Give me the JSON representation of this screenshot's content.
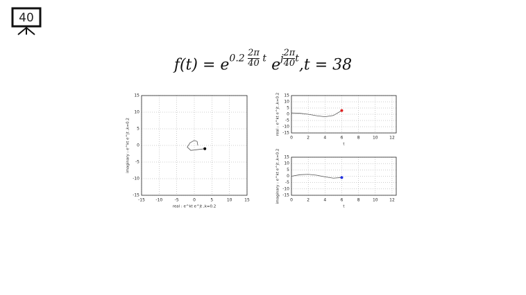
{
  "slide_number": "40",
  "formula": {
    "lhs": "f(t) = e",
    "exp1_coef": "0.2",
    "exp1_num": "2π",
    "exp1_den": "40",
    "exp1_var": "t",
    "base2": "e",
    "exp2_j": "j",
    "exp2_num": "2π",
    "exp2_den": "40",
    "exp2_var": "t",
    "tail": ",t = 38"
  },
  "chart_data": [
    {
      "type": "line",
      "xlabel": "real : e^kt e^jt ,k=0.2",
      "ylabel": "imaginary : e^kt e^jt ,k=0.2",
      "x": [
        1,
        0.8,
        0,
        -1.2,
        -2,
        -1,
        3
      ],
      "values": [
        0,
        1.2,
        1.5,
        0.8,
        -0.5,
        -1.5,
        -1
      ],
      "color": "#555555",
      "marker_color": "#000000",
      "xlim": [
        -15,
        15
      ],
      "xticks": [
        -15,
        -10,
        -5,
        0,
        5,
        10,
        15
      ],
      "ylim": [
        -15,
        15
      ],
      "yticks": [
        -15,
        -10,
        -5,
        0,
        5,
        10,
        15
      ],
      "grid": true
    },
    {
      "type": "line",
      "xlabel": "t",
      "ylabel": "real : e^kt e^jt ,k=0.2",
      "x": [
        0,
        1,
        2,
        3,
        4,
        5,
        6
      ],
      "values": [
        1,
        0.8,
        0,
        -1.2,
        -2,
        -1,
        3
      ],
      "color": "#555555",
      "marker_color": "#e02020",
      "xlim": [
        0,
        12.5
      ],
      "xticks": [
        0,
        2,
        4,
        6,
        8,
        10,
        12
      ],
      "ylim": [
        -15,
        15
      ],
      "yticks": [
        -15,
        -10,
        -5,
        0,
        5,
        10,
        15
      ],
      "grid": true
    },
    {
      "type": "line",
      "xlabel": "t",
      "ylabel": "imaginary : e^kt e^jt ,k=0.2",
      "x": [
        0,
        1,
        2,
        3,
        4,
        5,
        6
      ],
      "values": [
        0,
        1.2,
        1.5,
        0.8,
        -0.5,
        -1.5,
        -1
      ],
      "color": "#555555",
      "marker_color": "#2030e0",
      "xlim": [
        0,
        12.5
      ],
      "xticks": [
        0,
        2,
        4,
        6,
        8,
        10,
        12
      ],
      "ylim": [
        -15,
        15
      ],
      "yticks": [
        -15,
        -10,
        -5,
        0,
        5,
        10,
        15
      ],
      "grid": true
    }
  ]
}
